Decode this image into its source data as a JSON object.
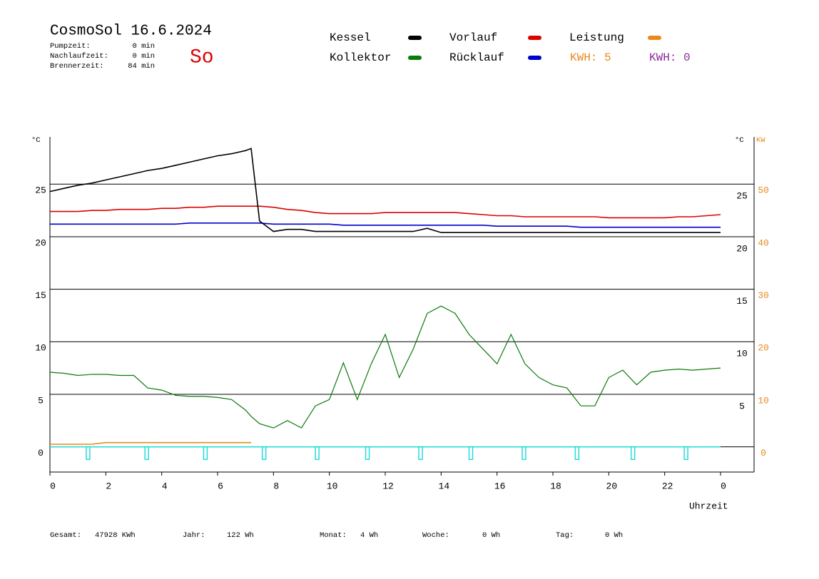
{
  "header": {
    "title": "CosmoSol 16.6.2024",
    "weekday": "So",
    "info": [
      [
        "Pumpzeit:",
        "0 min"
      ],
      [
        "Nachlaufzeit:",
        "0 min"
      ],
      [
        "Brennerzeit:",
        "84 min"
      ]
    ],
    "kwh": [
      {
        "text": "KWH: 5",
        "color": "#e88a1a"
      },
      {
        "text": "KWH: 0",
        "color": "#8a2a9a"
      }
    ]
  },
  "footer": [
    [
      "Gesamt:",
      "47928 KWh"
    ],
    [
      "Jahr:",
      "122 Wh"
    ],
    [
      "Monat:",
      "4 Wh"
    ],
    [
      "Woche:",
      "0 Wh"
    ],
    [
      "Tag:",
      "0 Wh"
    ]
  ],
  "chart_data": {
    "type": "line",
    "y_label": "°C",
    "y_label_right": "°C",
    "y2_label": "KW",
    "x_label": "Uhrzeit",
    "xlim": [
      0,
      25.2
    ],
    "xticks": [
      0,
      2,
      4,
      6,
      8,
      10,
      12,
      14,
      16,
      18,
      20,
      22,
      {
        "value": 24,
        "label": "0"
      }
    ],
    "ylim": [
      -2.4,
      29.5
    ],
    "yticks": [
      0,
      5,
      10,
      15,
      20,
      25
    ],
    "yticks_right": [
      5,
      10,
      15,
      20,
      25
    ],
    "y2lim": [
      -4.8,
      59
    ],
    "y2ticks": [
      0,
      10,
      20,
      30,
      40,
      50
    ],
    "grid": true,
    "x": [
      0,
      0.5,
      1,
      1.5,
      2,
      2.5,
      3,
      3.5,
      4,
      4.5,
      5,
      5.5,
      6,
      6.5,
      7,
      7.2,
      7.5,
      8,
      8.5,
      9,
      9.5,
      10,
      10.5,
      11,
      11.5,
      12,
      12.5,
      13,
      13.5,
      14,
      14.5,
      15,
      15.5,
      16,
      16.5,
      17,
      17.5,
      18,
      18.5,
      19,
      19.5,
      20,
      20.5,
      21,
      21.5,
      22,
      22.5,
      23,
      23.5,
      24
    ],
    "series": [
      {
        "name": "Kessel",
        "color": "#000000",
        "values": [
          24.3,
          24.6,
          24.9,
          25.1,
          25.4,
          25.7,
          26.0,
          26.3,
          26.5,
          26.8,
          27.1,
          27.4,
          27.7,
          27.9,
          28.2,
          28.4,
          21.5,
          20.5,
          20.7,
          20.7,
          20.5,
          20.5,
          20.5,
          20.5,
          20.5,
          20.5,
          20.5,
          20.5,
          20.8,
          20.4,
          20.4,
          20.4,
          20.4,
          20.4,
          20.4,
          20.4,
          20.4,
          20.4,
          20.4,
          20.4,
          20.4,
          20.4,
          20.4,
          20.4,
          20.4,
          20.4,
          20.4,
          20.4,
          20.4,
          20.4
        ]
      },
      {
        "name": "Kollektor",
        "color": "#0a7a0a",
        "values": [
          7.1,
          7.0,
          6.8,
          6.9,
          6.9,
          6.8,
          6.8,
          5.6,
          5.4,
          4.9,
          4.8,
          4.8,
          4.7,
          4.5,
          3.5,
          2.9,
          2.2,
          1.8,
          2.5,
          1.8,
          3.9,
          4.5,
          8.0,
          4.5,
          7.9,
          10.7,
          6.6,
          9.3,
          12.7,
          13.4,
          12.7,
          10.7,
          9.3,
          7.9,
          10.7,
          7.9,
          6.6,
          5.9,
          5.6,
          3.9,
          3.9,
          6.6,
          7.3,
          5.9,
          7.1,
          7.3,
          7.4,
          7.3,
          7.4,
          7.5
        ]
      },
      {
        "name": "Vorlauf",
        "color": "#dd0000",
        "values": [
          22.4,
          22.4,
          22.4,
          22.5,
          22.5,
          22.6,
          22.6,
          22.6,
          22.7,
          22.7,
          22.8,
          22.8,
          22.9,
          22.9,
          22.9,
          22.9,
          22.9,
          22.8,
          22.6,
          22.5,
          22.3,
          22.2,
          22.2,
          22.2,
          22.2,
          22.3,
          22.3,
          22.3,
          22.3,
          22.3,
          22.3,
          22.2,
          22.1,
          22.0,
          22.0,
          21.9,
          21.9,
          21.9,
          21.9,
          21.9,
          21.9,
          21.8,
          21.8,
          21.8,
          21.8,
          21.8,
          21.9,
          21.9,
          22.0,
          22.1
        ]
      },
      {
        "name": "Rücklauf",
        "color": "#0000cc",
        "values": [
          21.2,
          21.2,
          21.2,
          21.2,
          21.2,
          21.2,
          21.2,
          21.2,
          21.2,
          21.2,
          21.3,
          21.3,
          21.3,
          21.3,
          21.3,
          21.3,
          21.3,
          21.2,
          21.2,
          21.2,
          21.2,
          21.2,
          21.1,
          21.1,
          21.1,
          21.1,
          21.1,
          21.1,
          21.1,
          21.1,
          21.1,
          21.1,
          21.1,
          21.0,
          21.0,
          21.0,
          21.0,
          21.0,
          21.0,
          20.9,
          20.9,
          20.9,
          20.9,
          20.9,
          20.9,
          20.9,
          20.9,
          20.9,
          20.9,
          20.9
        ]
      },
      {
        "name": "Leistung",
        "color": "#e88a1a",
        "axis": "y2",
        "values": [
          0.5,
          0.5,
          0.5,
          0.5,
          0.8,
          0.8,
          0.8,
          0.8,
          0.8,
          0.8,
          0.8,
          0.8,
          0.8,
          0.8,
          0.8,
          0.8,
          null,
          null,
          null,
          null,
          null,
          null,
          null,
          null,
          null,
          null,
          null,
          null,
          null,
          null,
          null,
          null,
          null,
          null,
          null,
          null,
          null,
          null,
          null,
          null,
          null,
          null,
          null,
          null,
          null,
          null,
          null,
          null,
          null,
          null
        ]
      }
    ],
    "pump": {
      "color": "#22dddd",
      "x": [
        1.3,
        3.4,
        5.5,
        7.6,
        9.5,
        11.3,
        13.2,
        15.0,
        16.9,
        18.8,
        20.8,
        22.7
      ],
      "values": [
        -1.2,
        -1.2,
        -1.2,
        -1.2,
        -1.2,
        -1.2,
        -1.2,
        -1.2,
        -1.2,
        -1.2,
        -1.2,
        -1.2
      ]
    }
  }
}
